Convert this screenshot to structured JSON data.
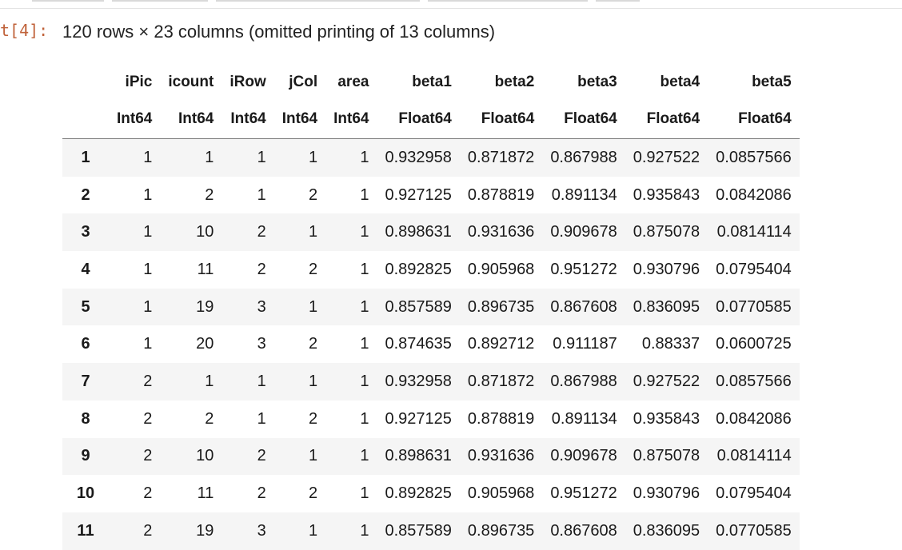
{
  "cell": {
    "prompt": "t[4]:",
    "summary": "120 rows × 23 columns (omitted printing of 13 columns)"
  },
  "table": {
    "columns": [
      "iPic",
      "icount",
      "iRow",
      "jCol",
      "area",
      "beta1",
      "beta2",
      "beta3",
      "beta4",
      "beta5"
    ],
    "types": [
      "Int64",
      "Int64",
      "Int64",
      "Int64",
      "Int64",
      "Float64",
      "Float64",
      "Float64",
      "Float64",
      "Float64"
    ],
    "rows": [
      {
        "index": "1",
        "cells": [
          "1",
          "1",
          "1",
          "1",
          "1",
          "0.932958",
          "0.871872",
          "0.867988",
          "0.927522",
          "0.0857566"
        ]
      },
      {
        "index": "2",
        "cells": [
          "1",
          "2",
          "1",
          "2",
          "1",
          "0.927125",
          "0.878819",
          "0.891134",
          "0.935843",
          "0.0842086"
        ]
      },
      {
        "index": "3",
        "cells": [
          "1",
          "10",
          "2",
          "1",
          "1",
          "0.898631",
          "0.931636",
          "0.909678",
          "0.875078",
          "0.0814114"
        ]
      },
      {
        "index": "4",
        "cells": [
          "1",
          "11",
          "2",
          "2",
          "1",
          "0.892825",
          "0.905968",
          "0.951272",
          "0.930796",
          "0.0795404"
        ]
      },
      {
        "index": "5",
        "cells": [
          "1",
          "19",
          "3",
          "1",
          "1",
          "0.857589",
          "0.896735",
          "0.867608",
          "0.836095",
          "0.0770585"
        ]
      },
      {
        "index": "6",
        "cells": [
          "1",
          "20",
          "3",
          "2",
          "1",
          "0.874635",
          "0.892712",
          "0.911187",
          "0.88337",
          "0.0600725"
        ]
      },
      {
        "index": "7",
        "cells": [
          "2",
          "1",
          "1",
          "1",
          "1",
          "0.932958",
          "0.871872",
          "0.867988",
          "0.927522",
          "0.0857566"
        ]
      },
      {
        "index": "8",
        "cells": [
          "2",
          "2",
          "1",
          "2",
          "1",
          "0.927125",
          "0.878819",
          "0.891134",
          "0.935843",
          "0.0842086"
        ]
      },
      {
        "index": "9",
        "cells": [
          "2",
          "10",
          "2",
          "1",
          "1",
          "0.898631",
          "0.931636",
          "0.909678",
          "0.875078",
          "0.0814114"
        ]
      },
      {
        "index": "10",
        "cells": [
          "2",
          "11",
          "2",
          "2",
          "1",
          "0.892825",
          "0.905968",
          "0.951272",
          "0.930796",
          "0.0795404"
        ]
      },
      {
        "index": "11",
        "cells": [
          "2",
          "19",
          "3",
          "1",
          "1",
          "0.857589",
          "0.896735",
          "0.867608",
          "0.836095",
          "0.0770585"
        ]
      }
    ]
  },
  "colors": {
    "prompt": "#c0623a",
    "stripe": "#f5f5f5",
    "header_rule": "#7a7a7a"
  }
}
